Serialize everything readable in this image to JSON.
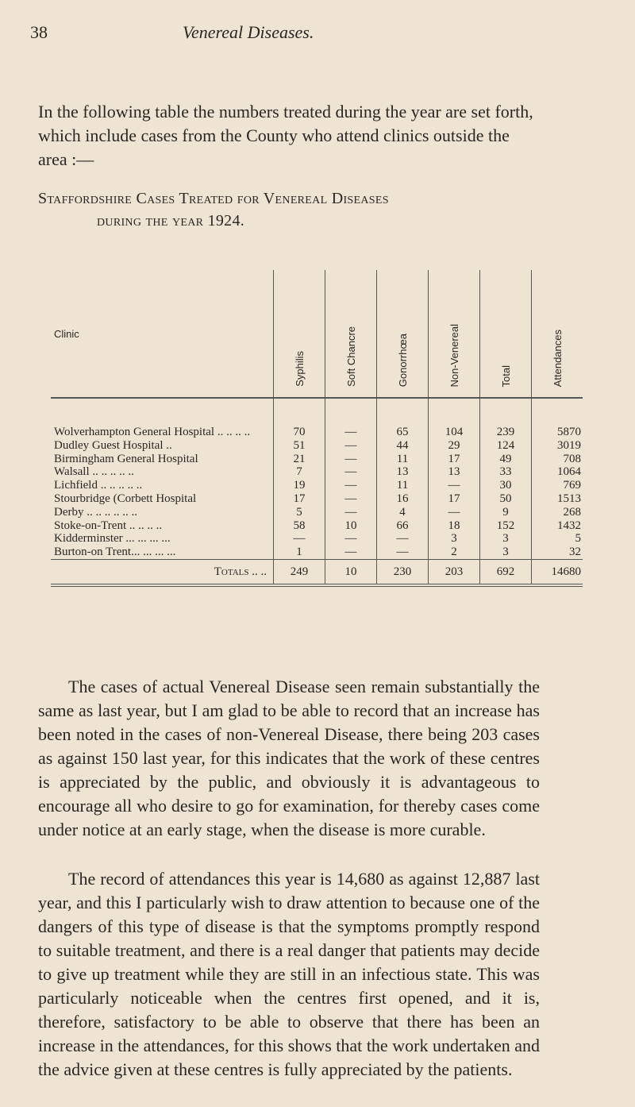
{
  "page_number": "38",
  "running_head": "Venereal Diseases.",
  "intro": "In the following table the numbers treated during the year are set forth, which include cases from the County who attend clinics outside the area :—",
  "heading_line1": "Staffordshire Cases Treated for Venereal Diseases",
  "heading_line2": "during the year 1924.",
  "table": {
    "headers": [
      "Clinic",
      "Syphilis",
      "Soft Chancre",
      "Gonorrhœa",
      "Non-Venereal",
      "Total",
      "Attendances"
    ],
    "rows": [
      {
        "clinic": "Wolverhampton General Hospital .. .. .. ..",
        "syphilis": "70",
        "soft_chancre": "—",
        "gonorrhoea": "65",
        "non_venereal": "104",
        "total": "239",
        "attendances": "5870"
      },
      {
        "clinic": "Dudley Guest Hospital ..",
        "syphilis": "51",
        "soft_chancre": "—",
        "gonorrhoea": "44",
        "non_venereal": "29",
        "total": "124",
        "attendances": "3019"
      },
      {
        "clinic": "Birmingham General Hospital",
        "syphilis": "21",
        "soft_chancre": "—",
        "gonorrhoea": "11",
        "non_venereal": "17",
        "total": "49",
        "attendances": "708"
      },
      {
        "clinic": "Walsall .. .. .. .. ..",
        "syphilis": "7",
        "soft_chancre": "—",
        "gonorrhoea": "13",
        "non_venereal": "13",
        "total": "33",
        "attendances": "1064"
      },
      {
        "clinic": "Lichfield .. .. .. .. ..",
        "syphilis": "19",
        "soft_chancre": "—",
        "gonorrhoea": "11",
        "non_venereal": "—",
        "total": "30",
        "attendances": "769"
      },
      {
        "clinic": "Stourbridge (Corbett Hospital",
        "syphilis": "17",
        "soft_chancre": "—",
        "gonorrhoea": "16",
        "non_venereal": "17",
        "total": "50",
        "attendances": "1513"
      },
      {
        "clinic": "Derby .. .. .. .. .. ..",
        "syphilis": "5",
        "soft_chancre": "—",
        "gonorrhoea": "4",
        "non_venereal": "—",
        "total": "9",
        "attendances": "268"
      },
      {
        "clinic": "Stoke-on-Trent .. .. .. ..",
        "syphilis": "58",
        "soft_chancre": "10",
        "gonorrhoea": "66",
        "non_venereal": "18",
        "total": "152",
        "attendances": "1432"
      },
      {
        "clinic": "Kidderminster ... ... ... ...",
        "syphilis": "—",
        "soft_chancre": "—",
        "gonorrhoea": "—",
        "non_venereal": "3",
        "total": "3",
        "attendances": "5"
      },
      {
        "clinic": "Burton-on Trent... ... ... ...",
        "syphilis": "1",
        "soft_chancre": "—",
        "gonorrhoea": "—",
        "non_venereal": "2",
        "total": "3",
        "attendances": "32"
      }
    ],
    "totals": {
      "label": "Totals .. ..",
      "syphilis": "249",
      "soft_chancre": "10",
      "gonorrhoea": "230",
      "non_venereal": "203",
      "total": "692",
      "attendances": "14680"
    }
  },
  "paragraphs": [
    "The cases of actual Venereal Disease seen remain substantially the same as last year, but I am glad to be able to record that an increase has been noted in the cases of non-Venereal Disease, there being 203 cases as against 150 last year, for this indicates that the work of these centres is appreciated by the public, and obviously it is advantageous to encourage all who desire to go for examination, for thereby cases come under notice at an early stage, when the disease is more curable.",
    "The record of attendances this year is 14,680 as against 12,887 last year, and this I particularly wish to draw attention to because one of the dangers of this type of disease is that the symptoms promptly respond to suitable treatment, and there is a real danger that patients may decide to give up treatment while they are still in an infectious state. This was particularly noticeable when the centres first opened, and it is, therefore, satisfactory to be able to observe that there has been an increase in the attendances, for this shows that the work undertaken and the advice given at these centres is fully appreciated by the patients."
  ]
}
